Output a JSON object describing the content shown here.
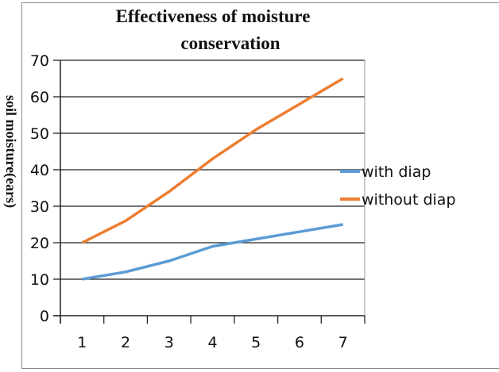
{
  "chart_data": {
    "type": "line",
    "title": "Effectiveness of moisture conservation",
    "title_lines": [
      "Effectiveness of moisture",
      "conservation"
    ],
    "ylabel": "soil moisture(ears)",
    "xlabel": "",
    "categories": [
      "1",
      "2",
      "3",
      "4",
      "5",
      "6",
      "7"
    ],
    "yticks": [
      "0",
      "10",
      "20",
      "30",
      "40",
      "50",
      "60",
      "70"
    ],
    "ylim": [
      0,
      70
    ],
    "grid": true,
    "legend_position": "right",
    "series": [
      {
        "name": "with diap",
        "color": "#5b9bd5",
        "values": [
          10,
          12,
          15,
          19,
          21,
          23,
          25
        ]
      },
      {
        "name": "without diap",
        "color": "#ed7d31",
        "values": [
          20,
          26,
          34,
          43,
          51,
          58,
          65
        ]
      }
    ]
  }
}
